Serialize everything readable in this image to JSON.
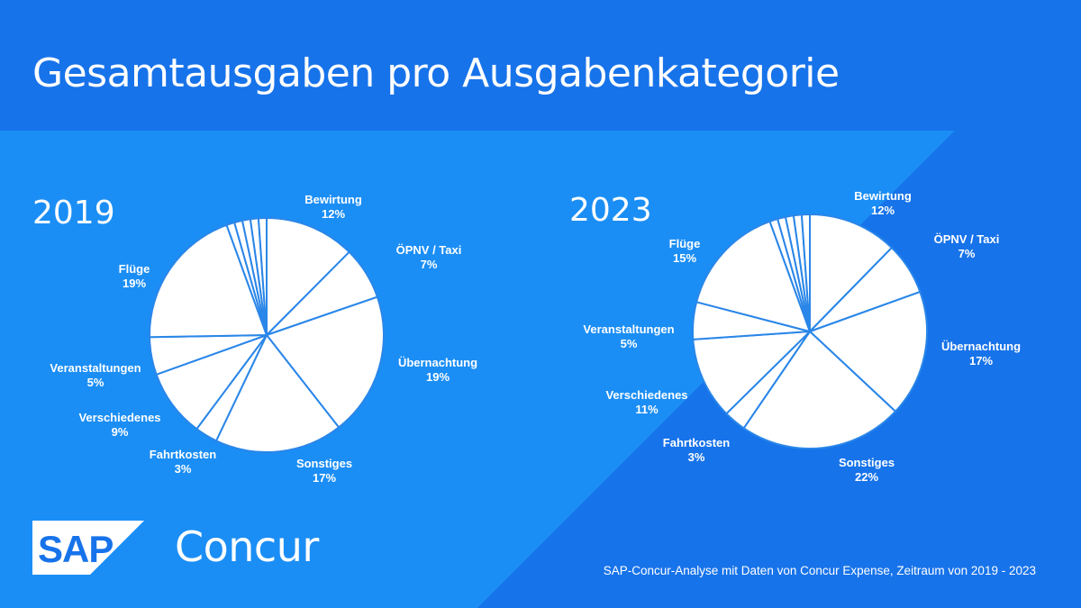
{
  "header": {
    "title": "Gesamtausgaben pro Ausgabenkategorie"
  },
  "brand": {
    "sap": "SAP",
    "product": "Concur"
  },
  "footer": {
    "note": "SAP-Concur-Analyse mit Daten von Concur Expense, Zeitraum von 2019 - 2023"
  },
  "colors": {
    "bg_dark": "#1a73e8",
    "bg_light": "#1b8ef5",
    "slice_fill": "#ffffff",
    "slice_stroke": "#2a86e8"
  },
  "chart_data": [
    {
      "type": "pie",
      "title": "2019",
      "categories": [
        "Bewirtung",
        "ÖPNV / Taxi",
        "Übernachtung",
        "Sonstiges",
        "Fahrtkosten",
        "Verschiedenes",
        "Veranstaltungen",
        "Flüge"
      ],
      "values": [
        12,
        7,
        19,
        17,
        3,
        9,
        5,
        19
      ],
      "labels": [
        "12%",
        "7%",
        "19%",
        "17%",
        "3%",
        "9%",
        "5%",
        "19%"
      ],
      "unlabeled_small_slices": 5
    },
    {
      "type": "pie",
      "title": "2023",
      "categories": [
        "Bewirtung",
        "ÖPNV / Taxi",
        "Übernachtung",
        "Sonstiges",
        "Fahrtkosten",
        "Verschiedenes",
        "Veranstaltungen",
        "Flüge"
      ],
      "values": [
        12,
        7,
        17,
        22,
        3,
        11,
        5,
        15
      ],
      "labels": [
        "12%",
        "7%",
        "17%",
        "22%",
        "3%",
        "11%",
        "5%",
        "15%"
      ],
      "unlabeled_small_slices": 5
    }
  ]
}
